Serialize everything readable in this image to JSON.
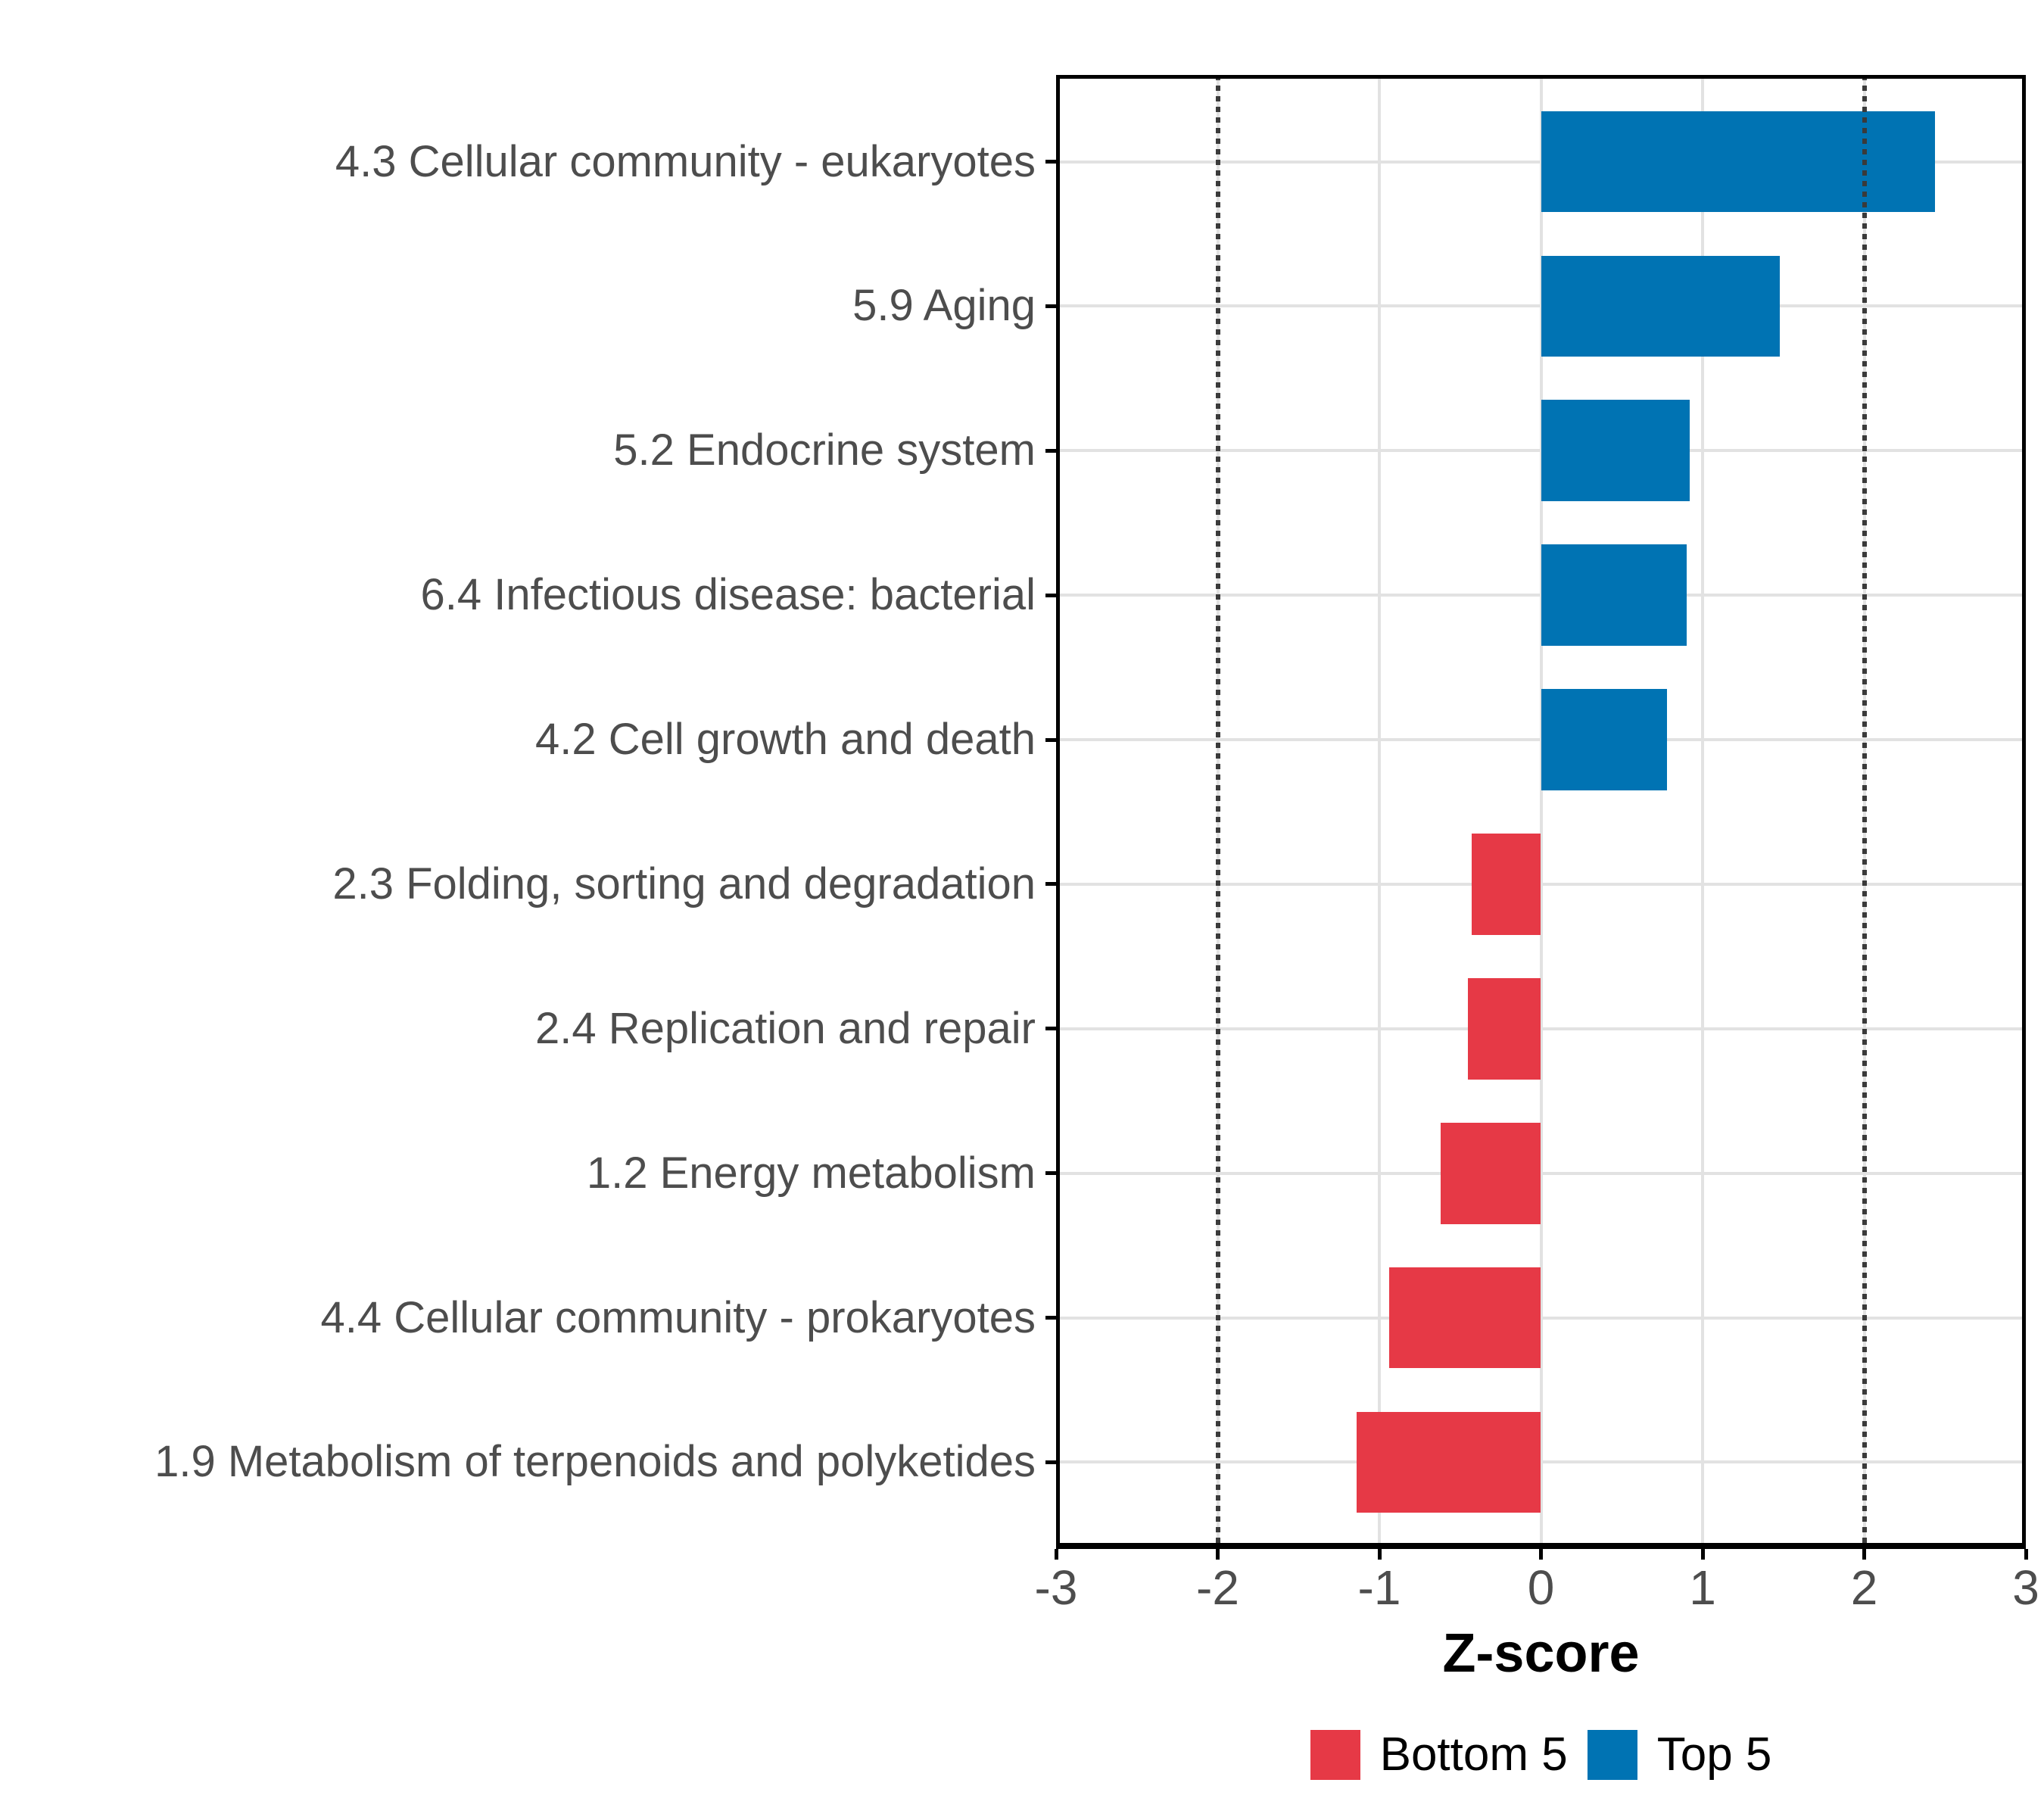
{
  "chart_data": {
    "type": "bar",
    "orientation": "horizontal",
    "xlabel": "Z-score",
    "ylabel": "",
    "xlim": [
      -3,
      3
    ],
    "x_ticks": [
      -3,
      -2,
      -1,
      0,
      1,
      2,
      3
    ],
    "x_tick_labels": [
      "-3",
      "-2",
      "-1",
      "0",
      "1",
      "2",
      "3"
    ],
    "reference_lines": [
      -2,
      2
    ],
    "grid": "major vertical at integers, horizontal at each category",
    "legend_position": "bottom",
    "categories": [
      "4.3 Cellular community - eukaryotes",
      "5.9 Aging",
      "5.2 Endocrine system",
      "6.4 Infectious disease: bacterial",
      "4.2 Cell growth and death",
      "2.3 Folding, sorting and degradation",
      "2.4 Replication and repair",
      "1.2 Energy metabolism",
      "4.4 Cellular community - prokaryotes",
      "1.9 Metabolism of terpenoids and polyketides"
    ],
    "values": [
      2.44,
      1.48,
      0.92,
      0.9,
      0.78,
      -0.43,
      -0.45,
      -0.62,
      -0.94,
      -1.14
    ],
    "bar_groups": [
      "Top 5",
      "Top 5",
      "Top 5",
      "Top 5",
      "Top 5",
      "Bottom 5",
      "Bottom 5",
      "Bottom 5",
      "Bottom 5",
      "Bottom 5"
    ],
    "group_colors": {
      "Top 5": "#0073B3",
      "Bottom 5": "#E63946"
    }
  },
  "axis": {
    "x_title": "Z-score"
  },
  "legend": {
    "items": [
      {
        "label": "Bottom 5",
        "color": "#E63946"
      },
      {
        "label": "Top 5",
        "color": "#0073B3"
      }
    ]
  },
  "colors": {
    "background": "#ffffff",
    "gridline": "#E2E2E2",
    "axis_text": "#4D4D4D",
    "panel_border": "#000000",
    "reference_line": "#3A3A3A",
    "bar_blue": "#0073B3",
    "bar_red": "#E63946"
  }
}
